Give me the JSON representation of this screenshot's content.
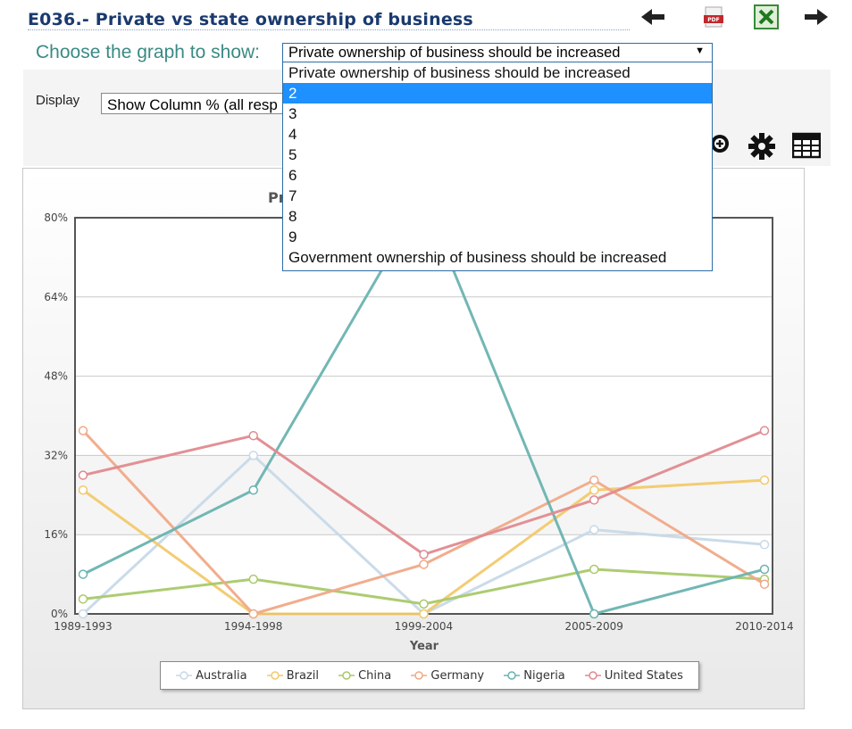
{
  "header": {
    "title": "E036.- Private vs state ownership of business",
    "icons": [
      "arrow-left-icon",
      "pdf-icon",
      "excel-icon",
      "arrow-right-icon"
    ]
  },
  "graph_select": {
    "label": "Choose the graph to show:",
    "selected": "Private ownership of business should be increased",
    "options": [
      "Private ownership of business should be increased",
      "2",
      "3",
      "4",
      "5",
      "6",
      "7",
      "8",
      "9",
      "Government ownership of business should be increased"
    ],
    "highlighted_index": 1
  },
  "display": {
    "label": "Display",
    "value": "Show Column % (all resp"
  },
  "chart_data": {
    "type": "line",
    "title": "Pri",
    "xlabel": "Year",
    "ylabel": "",
    "categories": [
      "1989-1993",
      "1994-1998",
      "1999-2004",
      "2005-2009",
      "2010-2014"
    ],
    "ylim": [
      0,
      80
    ],
    "yticks": [
      "0%",
      "16%",
      "32%",
      "48%",
      "64%",
      "80%"
    ],
    "series": [
      {
        "name": "Australia",
        "color": "#c7d9e8",
        "values": [
          0,
          32,
          0,
          17,
          14
        ]
      },
      {
        "name": "Brazil",
        "color": "#f2c96b",
        "values": [
          25,
          0,
          0,
          25,
          27
        ]
      },
      {
        "name": "China",
        "color": "#a9c96a",
        "values": [
          3,
          7,
          2,
          9,
          7
        ]
      },
      {
        "name": "Germany",
        "color": "#f0a987",
        "values": [
          37,
          0,
          10,
          27,
          6
        ]
      },
      {
        "name": "Nigeria",
        "color": "#6ab3b0",
        "values": [
          8,
          25,
          84,
          0,
          9
        ]
      },
      {
        "name": "United States",
        "color": "#e08a8f",
        "values": [
          28,
          36,
          12,
          23,
          37
        ]
      }
    ],
    "legend_position": "bottom"
  }
}
